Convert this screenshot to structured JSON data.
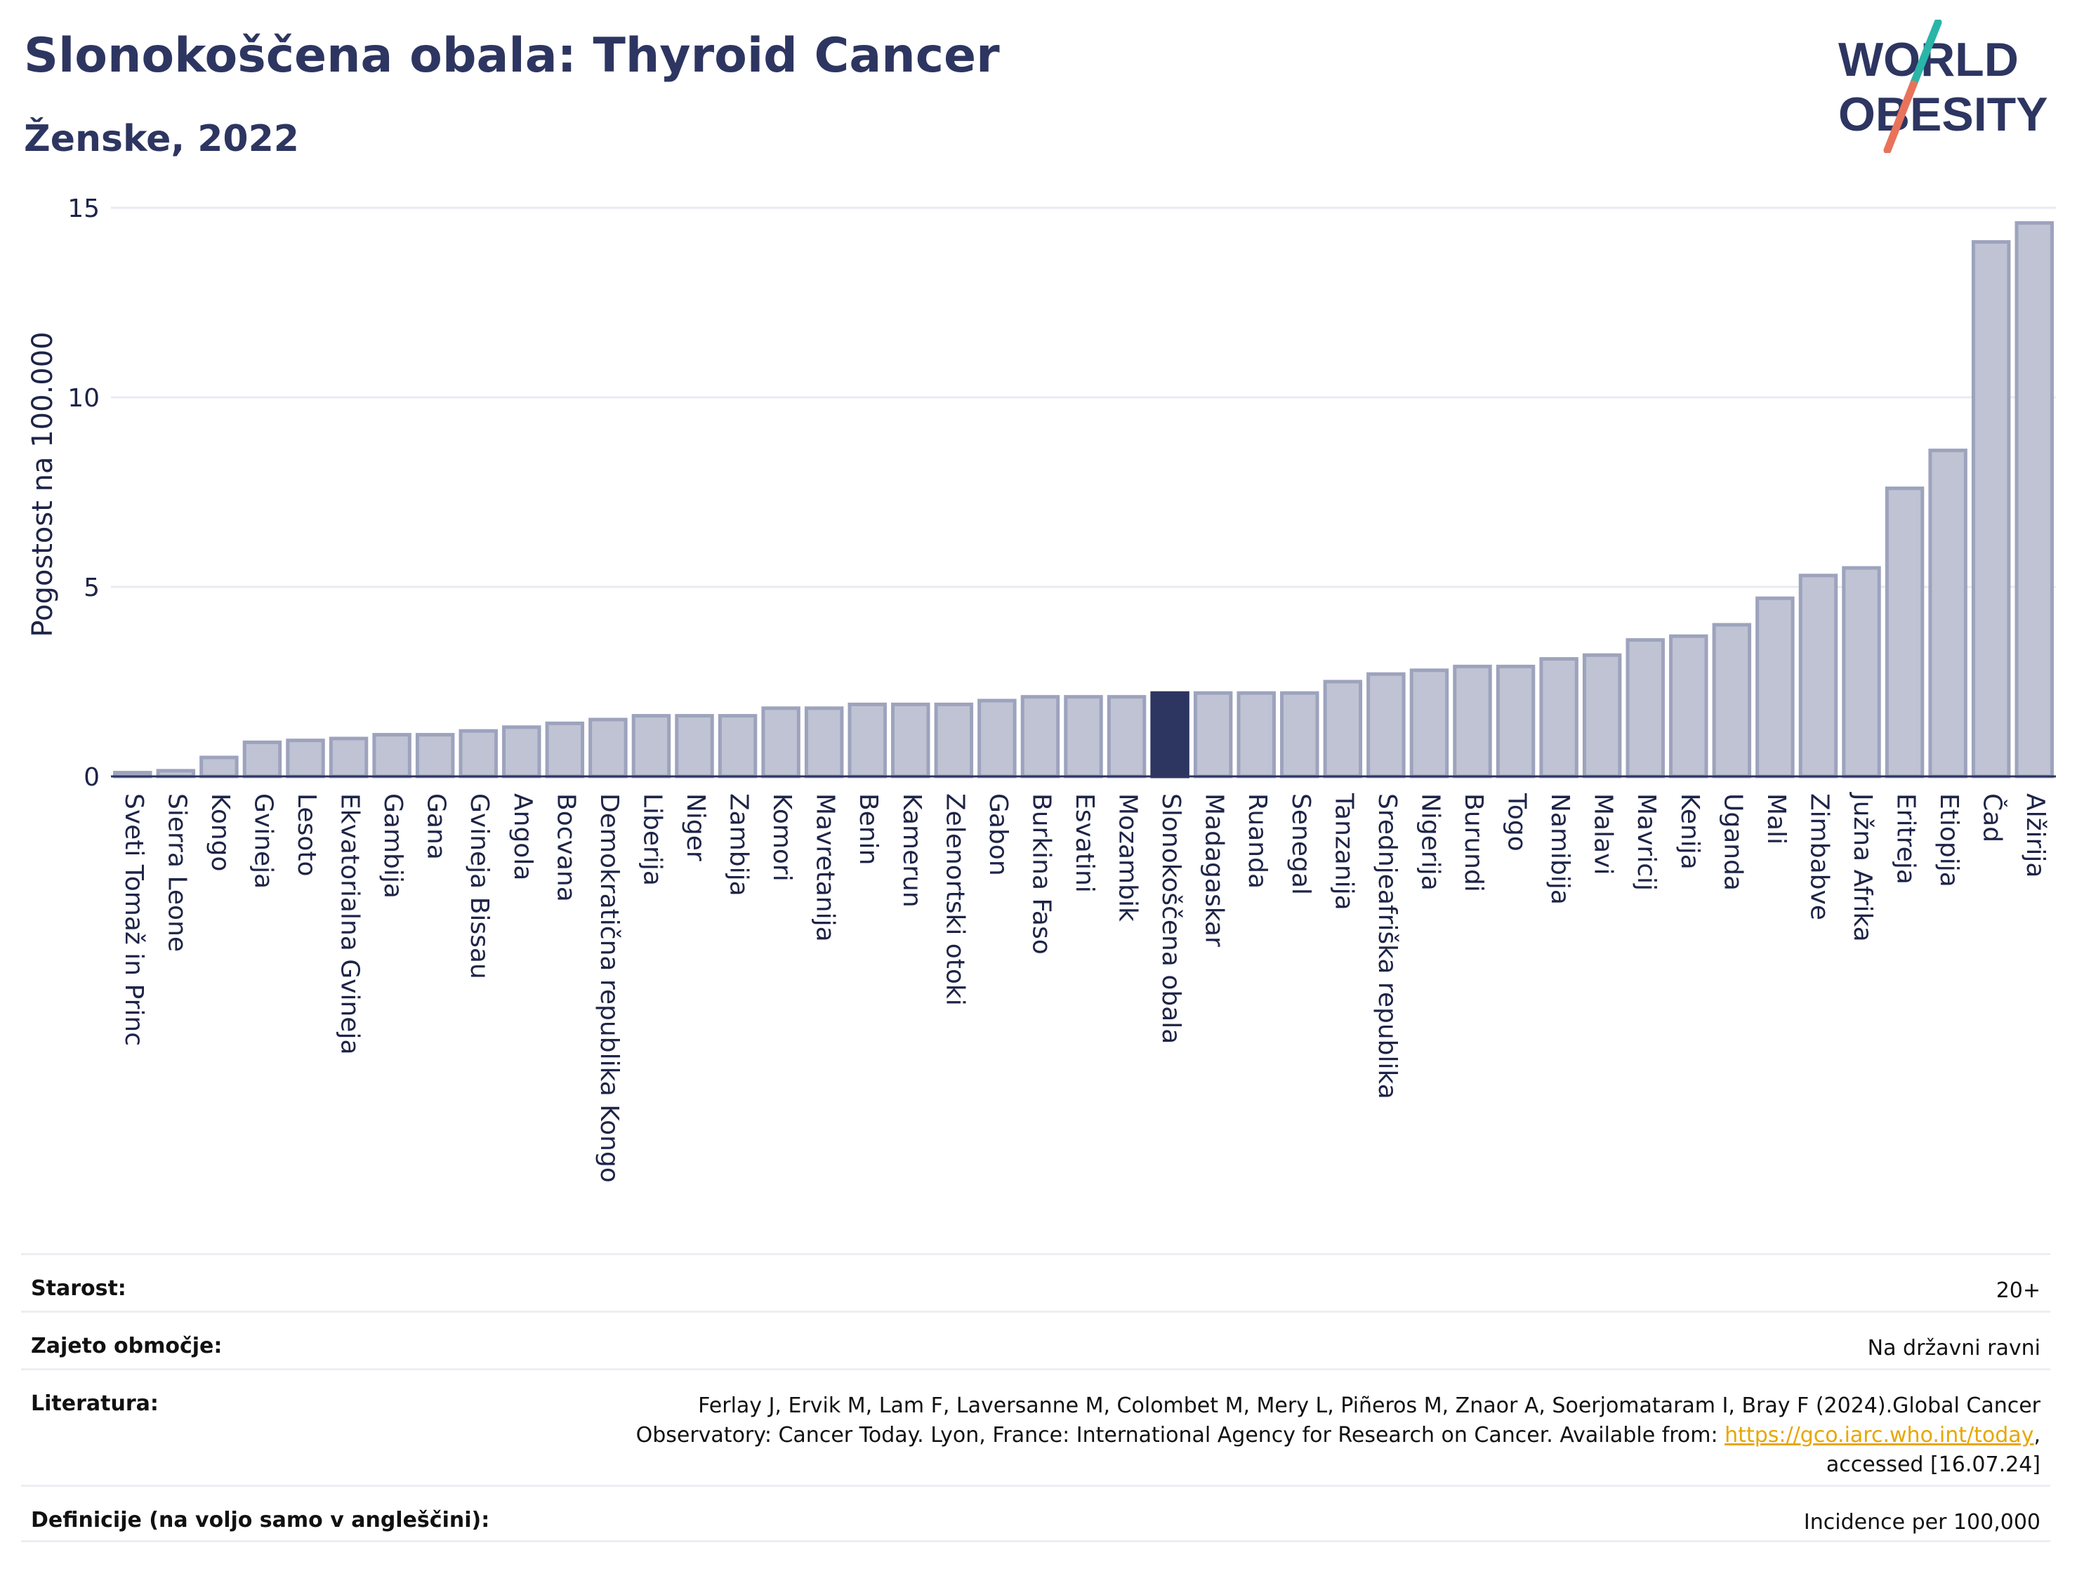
{
  "header": {
    "title": "Slonokoščena obala: Thyroid Cancer",
    "subtitle": "Ženske, 2022"
  },
  "logo": {
    "line1": "WORLD",
    "line2": "OBESITY",
    "colors": {
      "text": "#2d3561",
      "slash_teal": "#2ab5a8",
      "slash_coral": "#e8735a"
    }
  },
  "colors": {
    "bar_fill": "#bfc3d3",
    "bar_border": "#9da3bd",
    "highlight": "#2d3561",
    "grid": "#e9ebf1",
    "axis": "#2d3561"
  },
  "chart_data": {
    "type": "bar",
    "ylabel": "Pogostost na 100.000",
    "ylim": [
      0,
      15
    ],
    "yticks": [
      0,
      5,
      10,
      15
    ],
    "grid": true,
    "highlight": "Slonokoščena obala",
    "categories": [
      "Sveti Tomaž in Princ",
      "Sierra Leone",
      "Kongo",
      "Gvineja",
      "Lesoto",
      "Ekvatorialna Gvineja",
      "Gambija",
      "Gana",
      "Gvineja Bissau",
      "Angola",
      "Bocvana",
      "Demokratična republika Kongo",
      "Liberija",
      "Niger",
      "Zambija",
      "Komori",
      "Mavretanija",
      "Benin",
      "Kamerun",
      "Zelenortski otoki",
      "Gabon",
      "Burkina Faso",
      "Esvatini",
      "Mozambik",
      "Slonokoščena obala",
      "Madagaskar",
      "Ruanda",
      "Senegal",
      "Tanzanija",
      "Srednjeafriška republika",
      "Nigerija",
      "Burundi",
      "Togo",
      "Namibija",
      "Malavi",
      "Mavricij",
      "Kenija",
      "Uganda",
      "Mali",
      "Zimbabve",
      "Južna Afrika",
      "Eritreja",
      "Etiopija",
      "Čad",
      "Alžirija"
    ],
    "values": [
      0.1,
      0.15,
      0.5,
      0.9,
      0.95,
      1.0,
      1.1,
      1.1,
      1.2,
      1.3,
      1.4,
      1.5,
      1.6,
      1.6,
      1.6,
      1.8,
      1.8,
      1.9,
      1.9,
      1.9,
      2.0,
      2.1,
      2.1,
      2.1,
      2.2,
      2.2,
      2.2,
      2.2,
      2.5,
      2.7,
      2.8,
      2.9,
      2.9,
      3.1,
      3.2,
      3.6,
      3.7,
      4.0,
      4.7,
      5.3,
      5.5,
      7.6,
      8.6,
      14.1,
      14.6
    ]
  },
  "meta": {
    "age_label": "Starost:",
    "age_value": "20+",
    "area_label": "Zajeto območje:",
    "area_value": "Na državni ravni",
    "lit_label": "Literatura:",
    "lit_text_1": "Ferlay J, Ervik M, Lam F, Laversanne M, Colombet M, Mery L, Piñeros M, Znaor A, Soerjomataram I, Bray F (2024).Global Cancer",
    "lit_text_2": "Observatory: Cancer Today. Lyon, France: International Agency for Research on Cancer. Available from:",
    "lit_link": "https://gco.iarc.who.int/today",
    "lit_text_3": ",",
    "lit_text_4": "accessed [16.07.24]",
    "def_label": "Definicije (na voljo samo v angleščini):",
    "def_value": "Incidence per 100,000"
  }
}
